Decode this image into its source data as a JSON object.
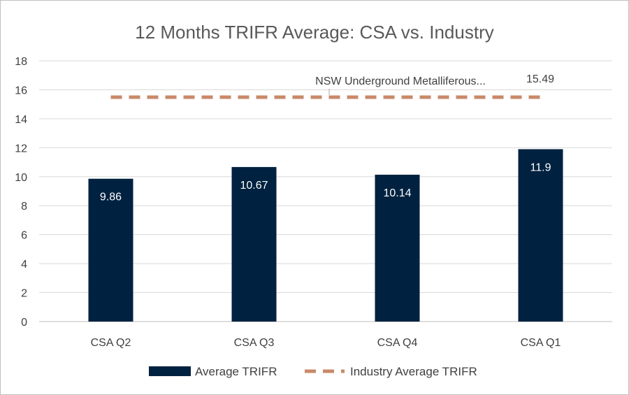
{
  "chart_data": {
    "type": "bar",
    "title": "12 Months TRIFR Average: CSA vs. Industry",
    "xlabel": "",
    "ylabel": "",
    "categories": [
      "CSA Q2",
      "CSA Q3",
      "CSA Q4",
      "CSA Q1"
    ],
    "ylim": [
      0,
      18
    ],
    "yticks": [
      0,
      2,
      4,
      6,
      8,
      10,
      12,
      14,
      16,
      18
    ],
    "grid": true,
    "series": [
      {
        "name": "Average TRIFR",
        "type": "bar",
        "color": "#002240",
        "values": [
          9.86,
          10.67,
          10.14,
          11.9
        ],
        "labels": [
          "9.86",
          "10.67",
          "10.14",
          "11.9"
        ]
      },
      {
        "name": "Industry Average TRIFR",
        "type": "line",
        "style": "dashed",
        "color": "#C8896A",
        "values": [
          15.49,
          15.49,
          15.49,
          15.49
        ]
      }
    ],
    "annotations": [
      {
        "text": "NSW Underground Metalliferous...",
        "series": "Industry Average TRIFR"
      },
      {
        "text": "15.49",
        "series": "Industry Average TRIFR"
      }
    ],
    "legend": {
      "position": "bottom"
    }
  }
}
